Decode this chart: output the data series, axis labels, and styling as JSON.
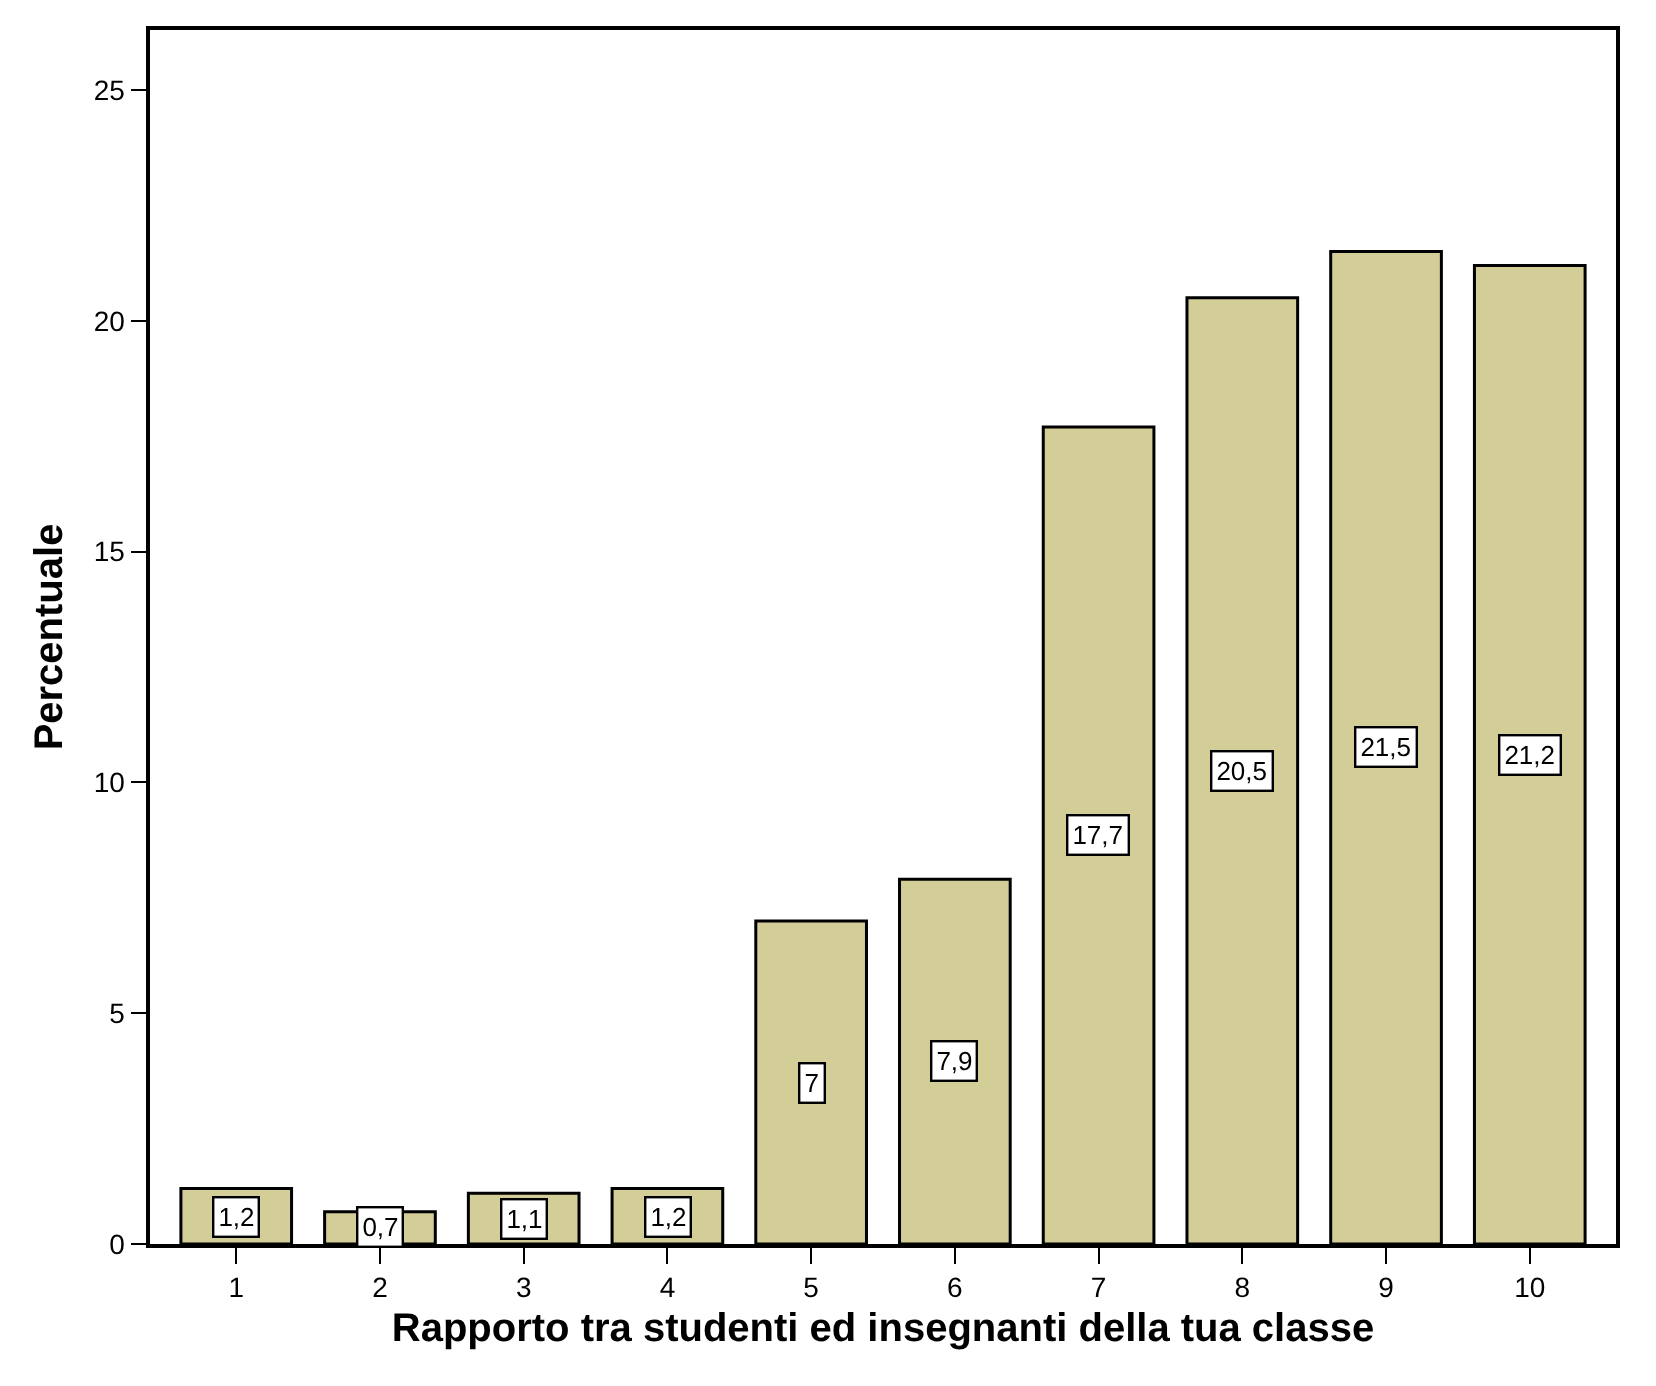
{
  "chart_data": {
    "type": "bar",
    "xlabel": "Rapporto tra studenti ed insegnanti della tua classe",
    "ylabel": "Percentuale",
    "categories": [
      "1",
      "2",
      "3",
      "4",
      "5",
      "6",
      "7",
      "8",
      "9",
      "10"
    ],
    "values": [
      1.2,
      0.7,
      1.1,
      1.2,
      7,
      7.9,
      17.7,
      20.5,
      21.5,
      21.2
    ],
    "value_labels": [
      "1,2",
      "0,7",
      "1,1",
      "1,2",
      "7",
      "7,9",
      "17,7",
      "20,5",
      "21,5",
      "21,2"
    ],
    "color": "#d3cd98",
    "ylim": [
      0,
      26.3
    ],
    "yticks": [
      0,
      5,
      10,
      15,
      20,
      25
    ],
    "grid": false
  }
}
